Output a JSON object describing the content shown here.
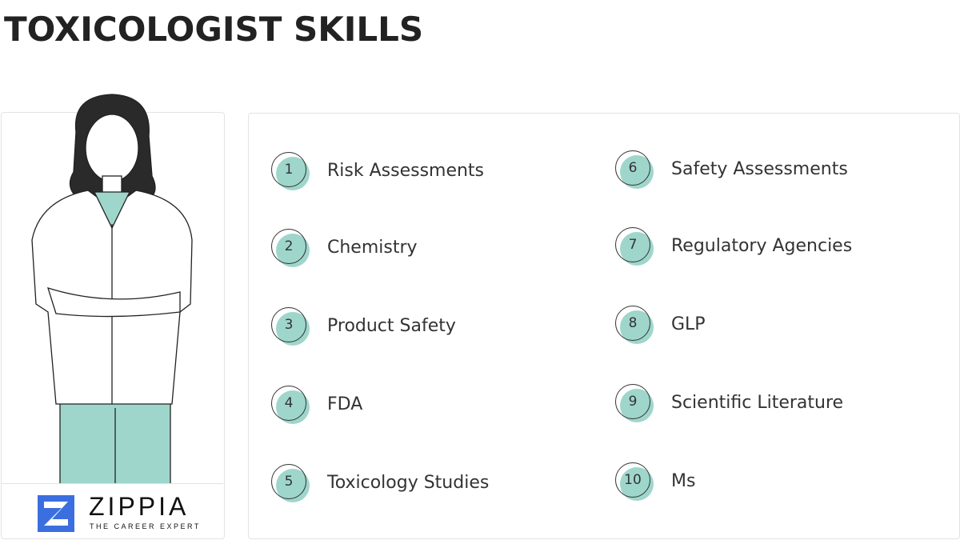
{
  "title": "TOXICOLOGIST SKILLS",
  "brand": {
    "name": "ZIPPIA",
    "tagline": "THE CAREER EXPERT",
    "color": "#3b6fe0"
  },
  "accent_color": "#9fd6cc",
  "skills": [
    {
      "number": "1",
      "label": "Risk Assessments"
    },
    {
      "number": "2",
      "label": "Chemistry"
    },
    {
      "number": "3",
      "label": "Product Safety"
    },
    {
      "number": "4",
      "label": "FDA"
    },
    {
      "number": "5",
      "label": "Toxicology Studies"
    },
    {
      "number": "6",
      "label": "Safety Assessments"
    },
    {
      "number": "7",
      "label": "Regulatory Agencies"
    },
    {
      "number": "8",
      "label": "GLP"
    },
    {
      "number": "9",
      "label": "Scientific Literature"
    },
    {
      "number": "10",
      "label": "Ms"
    }
  ]
}
